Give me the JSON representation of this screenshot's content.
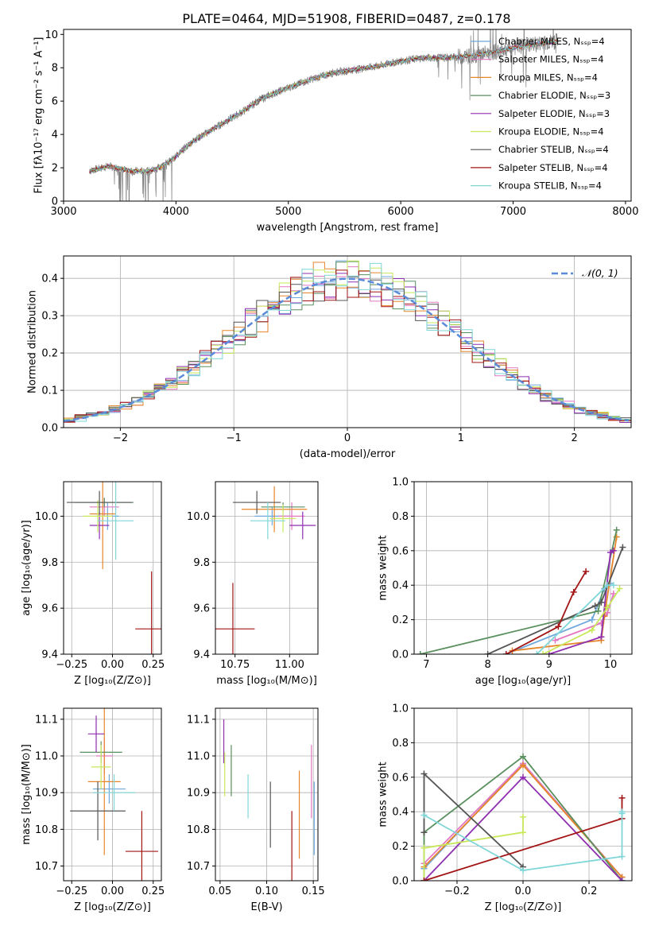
{
  "figure_title": "PLATE=0464, MJD=51908, FIBERID=0487, z=0.178",
  "colors": {
    "Chabrier MILES": "#6fa8dc",
    "Salpeter MILES": "#e377c2",
    "Kroupa MILES": "#e6862a",
    "Chabrier ELODIE": "#5a8f5e",
    "Salpeter ELODIE": "#8e2fb0",
    "Kroupa ELODIE": "#c7e85a",
    "Chabrier STELIB": "#555555",
    "Salpeter STELIB": "#a31515",
    "Kroupa STELIB": "#7fd6d8",
    "normal": "#5b8bd8",
    "spectrum": "#808080"
  },
  "chart_data": [
    {
      "id": "spectrum",
      "type": "line",
      "title": "",
      "xlabel": "wavelength [Angstrom, rest frame]",
      "ylabel": "Flux [fλ10⁻¹⁷ erg cm⁻² s⁻¹ A⁻¹]",
      "xlim": [
        3000,
        8050
      ],
      "ylim": [
        0,
        10.3
      ],
      "xticks": [
        3000,
        4000,
        5000,
        6000,
        7000,
        8000
      ],
      "yticks": [
        0,
        2,
        4,
        6,
        8,
        10
      ],
      "grid": false,
      "legend_position": "upper-right",
      "legend": [
        "Chabrier MILES, Nₛₛₚ=4",
        "Salpeter MILES, Nₛₛₚ=4",
        "Kroupa MILES, Nₛₛₚ=4",
        "Chabrier ELODIE, Nₛₛₚ=3",
        "Salpeter ELODIE, Nₛₛₚ=3",
        "Kroupa ELODIE, Nₛₛₚ=4",
        "Chabrier STELIB, Nₛₛₚ=4",
        "Salpeter STELIB, Nₛₛₚ=4",
        "Kroupa STELIB, Nₛₛₚ=4"
      ],
      "continuum": {
        "wavelength": [
          3230,
          3400,
          3600,
          3750,
          3850,
          3950,
          4050,
          4150,
          4300,
          4450,
          4600,
          4750,
          4850,
          5000,
          5200,
          5400,
          5600,
          5800,
          6000,
          6200,
          6400,
          6600,
          6800,
          7000,
          7200,
          7400
        ],
        "flux": [
          1.8,
          2.1,
          1.8,
          1.8,
          2.0,
          2.4,
          3.0,
          3.6,
          4.2,
          4.8,
          5.4,
          6.1,
          6.4,
          6.8,
          7.3,
          7.7,
          7.9,
          8.1,
          8.4,
          8.6,
          8.6,
          8.7,
          8.9,
          9.2,
          9.4,
          9.6
        ]
      }
    },
    {
      "id": "residuals",
      "type": "histogram",
      "title": "",
      "xlabel": "(data-model)/error",
      "ylabel": "Normed distribution",
      "xlim": [
        -2.5,
        2.5
      ],
      "ylim": [
        0,
        0.46
      ],
      "xticks": [
        -2,
        -1,
        0,
        1,
        2
      ],
      "yticks": [
        0.0,
        0.1,
        0.2,
        0.3,
        0.4
      ],
      "grid": true,
      "legend_position": "upper-right",
      "legend": [
        "𝒩(0, 1)"
      ]
    },
    {
      "id": "Z-age",
      "type": "errorbar",
      "xlabel": "Z [log₁₀(Z/Z⊙)]",
      "ylabel": "age  [log₁₀(age/yr)]",
      "xlim": [
        -0.3,
        0.3
      ],
      "ylim": [
        9.4,
        10.15
      ],
      "xticks": [
        -0.25,
        0.0,
        0.25
      ],
      "yticks": [
        9.4,
        9.6,
        9.8,
        10.0
      ],
      "grid": true,
      "points": [
        {
          "x": -0.03,
          "xerr": 0.07,
          "y": 10.0,
          "yerr": 0.06
        },
        {
          "x": -0.05,
          "xerr": 0.09,
          "y": 10.04,
          "yerr": 0.04
        },
        {
          "x": -0.06,
          "xerr": 0.08,
          "y": 10.01,
          "yerr": 0.24
        },
        {
          "x": -0.05,
          "xerr": 0.18,
          "y": 10.06,
          "yerr": 0.02
        },
        {
          "x": -0.08,
          "xerr": 0.06,
          "y": 9.96,
          "yerr": 0.06
        },
        {
          "x": -0.09,
          "xerr": 0.09,
          "y": 10.0,
          "yerr": 0.07
        },
        {
          "x": -0.08,
          "xerr": 0.2,
          "y": 10.06,
          "yerr": 0.05
        },
        {
          "x": 0.24,
          "xerr": 0.1,
          "y": 9.51,
          "yerr": 0.25
        },
        {
          "x": 0.02,
          "xerr": 0.11,
          "y": 9.98,
          "yerr": 0.17
        }
      ]
    },
    {
      "id": "mass-age",
      "type": "errorbar",
      "xlabel": "mass [log₁₀(M/M⊙)]",
      "ylabel": "",
      "xlim": [
        10.66,
        11.13
      ],
      "ylim": [
        9.4,
        10.15
      ],
      "xticks": [
        10.75,
        11.0
      ],
      "yticks": [
        9.4,
        9.6,
        9.8,
        10.0
      ],
      "grid": true,
      "points": [
        {
          "x": 10.92,
          "xerr": 0.08,
          "y": 10.0,
          "yerr": 0.04
        },
        {
          "x": 11.01,
          "xerr": 0.06,
          "y": 10.0,
          "yerr": 0.06
        },
        {
          "x": 10.93,
          "xerr": 0.15,
          "y": 10.03,
          "yerr": 0.1
        },
        {
          "x": 10.97,
          "xerr": 0.1,
          "y": 10.04,
          "yerr": 0.02
        },
        {
          "x": 11.06,
          "xerr": 0.06,
          "y": 9.96,
          "yerr": 0.06
        },
        {
          "x": 10.97,
          "xerr": 0.06,
          "y": 9.99,
          "yerr": 0.06
        },
        {
          "x": 10.85,
          "xerr": 0.11,
          "y": 10.06,
          "yerr": 0.05
        },
        {
          "x": 10.74,
          "xerr": 0.1,
          "y": 9.51,
          "yerr": 0.2
        },
        {
          "x": 10.9,
          "xerr": 0.08,
          "y": 9.98,
          "yerr": 0.08
        }
      ]
    },
    {
      "id": "age-massweight",
      "type": "line",
      "xlabel": "age  [log₁₀(age/yr)]",
      "ylabel": "mass weight",
      "xlim": [
        6.8,
        10.35
      ],
      "ylim": [
        0,
        1.0
      ],
      "xticks": [
        7,
        8,
        9,
        10
      ],
      "yticks": [
        0.0,
        0.2,
        0.4,
        0.6,
        0.8,
        1.0
      ],
      "grid": true,
      "series": [
        {
          "x": [
            8.3,
            9.7,
            9.9,
            10.0
          ],
          "y": [
            0.0,
            0.2,
            0.38,
            0.41
          ]
        },
        {
          "x": [
            9.1,
            9.85,
            9.95,
            10.05
          ],
          "y": [
            0.08,
            0.18,
            0.24,
            0.35
          ]
        },
        {
          "x": [
            8.4,
            9.85,
            9.9,
            10.1
          ],
          "y": [
            0.02,
            0.08,
            0.22,
            0.68
          ]
        },
        {
          "x": [
            6.9,
            9.8,
            10.1
          ],
          "y": [
            0.0,
            0.25,
            0.72
          ]
        },
        {
          "x": [
            9.0,
            9.85,
            10.0,
            10.05
          ],
          "y": [
            0.0,
            0.1,
            0.59,
            0.6
          ]
        },
        {
          "x": [
            8.9,
            9.7,
            9.95,
            10.15
          ],
          "y": [
            0.0,
            0.14,
            0.27,
            0.38
          ]
        },
        {
          "x": [
            8.0,
            9.75,
            9.85,
            10.2
          ],
          "y": [
            0.0,
            0.28,
            0.3,
            0.62
          ]
        },
        {
          "x": [
            8.3,
            9.15,
            9.4,
            9.6
          ],
          "y": [
            0.0,
            0.16,
            0.36,
            0.48
          ]
        },
        {
          "x": [
            8.8,
            9.95,
            10.05
          ],
          "y": [
            0.0,
            0.4,
            0.4
          ]
        }
      ]
    },
    {
      "id": "Z-mass",
      "type": "errorbar",
      "xlabel": "Z [log₁₀(Z/Z⊙)]",
      "ylabel": "mass [log₁₀(M/M⊙)]",
      "xlim": [
        -0.3,
        0.3
      ],
      "ylim": [
        10.66,
        11.13
      ],
      "xticks": [
        -0.25,
        0.0,
        0.25
      ],
      "yticks": [
        10.7,
        10.8,
        10.9,
        11.0,
        11.1
      ],
      "grid": true,
      "points": [
        {
          "x": -0.02,
          "xerr": 0.1,
          "y": 10.91,
          "yerr": 0.04
        },
        {
          "x": -0.05,
          "xerr": 0.05,
          "y": 11.0,
          "yerr": 0.05
        },
        {
          "x": -0.05,
          "xerr": 0.1,
          "y": 10.93,
          "yerr": 0.2
        },
        {
          "x": -0.07,
          "xerr": 0.13,
          "y": 11.01,
          "yerr": 0.03
        },
        {
          "x": -0.1,
          "xerr": 0.05,
          "y": 11.06,
          "yerr": 0.05
        },
        {
          "x": -0.07,
          "xerr": 0.06,
          "y": 10.97,
          "yerr": 0.06
        },
        {
          "x": -0.09,
          "xerr": 0.17,
          "y": 10.85,
          "yerr": 0.08
        },
        {
          "x": 0.18,
          "xerr": 0.1,
          "y": 10.74,
          "yerr": 0.11
        },
        {
          "x": 0.01,
          "xerr": 0.13,
          "y": 10.9,
          "yerr": 0.05
        }
      ]
    },
    {
      "id": "EBV-mass",
      "type": "errorbar",
      "xlabel": "E(B-V)",
      "ylabel": "",
      "xlim": [
        0.045,
        0.155
      ],
      "ylim": [
        10.66,
        11.13
      ],
      "xticks": [
        0.05,
        0.1,
        0.15
      ],
      "yticks": [
        10.7,
        10.8,
        10.9,
        11.0,
        11.1
      ],
      "grid": true,
      "points": [
        {
          "x": 0.151,
          "xerr": 0,
          "y": 10.83,
          "yerr": 0.1
        },
        {
          "x": 0.148,
          "xerr": 0,
          "y": 10.93,
          "yerr": 0.1
        },
        {
          "x": 0.135,
          "xerr": 0,
          "y": 10.84,
          "yerr": 0.12
        },
        {
          "x": 0.062,
          "xerr": 0,
          "y": 10.96,
          "yerr": 0.07
        },
        {
          "x": 0.054,
          "xerr": 0,
          "y": 11.04,
          "yerr": 0.06
        },
        {
          "x": 0.055,
          "xerr": 0,
          "y": 10.95,
          "yerr": 0.06
        },
        {
          "x": 0.104,
          "xerr": 0,
          "y": 10.84,
          "yerr": 0.09
        },
        {
          "x": 0.127,
          "xerr": 0,
          "y": 10.74,
          "yerr": 0.11
        },
        {
          "x": 0.08,
          "xerr": 0,
          "y": 10.89,
          "yerr": 0.06
        }
      ]
    },
    {
      "id": "Z-massweight",
      "type": "line",
      "xlabel": "Z [log₁₀(Z/Z⊙)]",
      "ylabel": "mass weight",
      "xlim": [
        -0.33,
        0.33
      ],
      "ylim": [
        0,
        1.0
      ],
      "xticks": [
        -0.2,
        0.0,
        0.2
      ],
      "yticks": [
        0.0,
        0.2,
        0.4,
        0.6,
        0.8,
        1.0
      ],
      "grid": true,
      "series": [
        {
          "x": [
            -0.3,
            0.0,
            0.3,
            0.3
          ],
          "y": [
            0.07,
            0.68,
            0.02,
            0.0
          ]
        },
        {
          "x": [
            -0.3,
            0.0,
            0.3
          ],
          "y": [
            0.1,
            0.68,
            0.02
          ]
        },
        {
          "x": [
            -0.3,
            0.0,
            0.3
          ],
          "y": [
            0.08,
            0.67,
            0.02
          ]
        },
        {
          "x": [
            -0.3,
            -0.3,
            0.0,
            0.3
          ],
          "y": [
            0.0,
            0.28,
            0.72,
            0.0
          ]
        },
        {
          "x": [
            -0.3,
            0.0,
            0.3
          ],
          "y": [
            0.0,
            0.6,
            0.0
          ]
        },
        {
          "x": [
            -0.3,
            -0.3,
            0.0,
            0.0
          ],
          "y": [
            0.0,
            0.19,
            0.28,
            0.37
          ]
        },
        {
          "x": [
            -0.3,
            -0.3,
            0.0
          ],
          "y": [
            0.28,
            0.62,
            0.08
          ]
        },
        {
          "x": [
            -0.3,
            0.3,
            0.3
          ],
          "y": [
            0.0,
            0.36,
            0.48
          ]
        },
        {
          "x": [
            -0.3,
            0.0,
            0.3,
            0.3,
            0.3
          ],
          "y": [
            0.38,
            0.06,
            0.14,
            0.39,
            0.4
          ]
        }
      ]
    }
  ]
}
